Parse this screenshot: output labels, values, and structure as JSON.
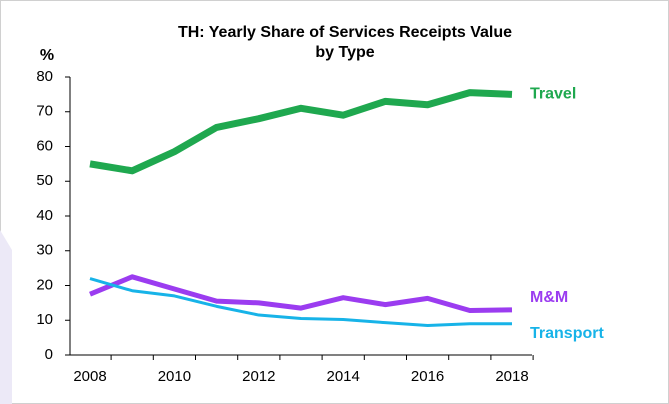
{
  "chart_data": {
    "type": "line",
    "title": [
      "TH: Yearly Share of Services Receipts Value",
      "by Type"
    ],
    "y_label": "%",
    "categories": [
      "2008",
      null,
      "2010",
      null,
      "2012",
      null,
      "2014",
      null,
      "2016",
      null,
      "2018"
    ],
    "series": [
      {
        "name": "Travel",
        "color": "#1fa84f",
        "values": [
          55,
          53,
          58.5,
          65.5,
          68,
          71,
          69,
          73,
          72,
          75.5,
          75
        ]
      },
      {
        "name": "M&M",
        "color": "#9b3cf0",
        "values": [
          17.5,
          22.5,
          19,
          15.5,
          15,
          13.5,
          16.5,
          14.5,
          16.3,
          12.8,
          13
        ]
      },
      {
        "name": "Transport",
        "color": "#17b3e8",
        "values": [
          22,
          18.5,
          17,
          14,
          11.5,
          10.5,
          10.2,
          9.3,
          8.5,
          9,
          9
        ]
      }
    ],
    "ylim": [
      0,
      80
    ],
    "yticks": [
      0,
      10,
      20,
      30,
      40,
      50,
      60,
      70,
      80
    ]
  }
}
